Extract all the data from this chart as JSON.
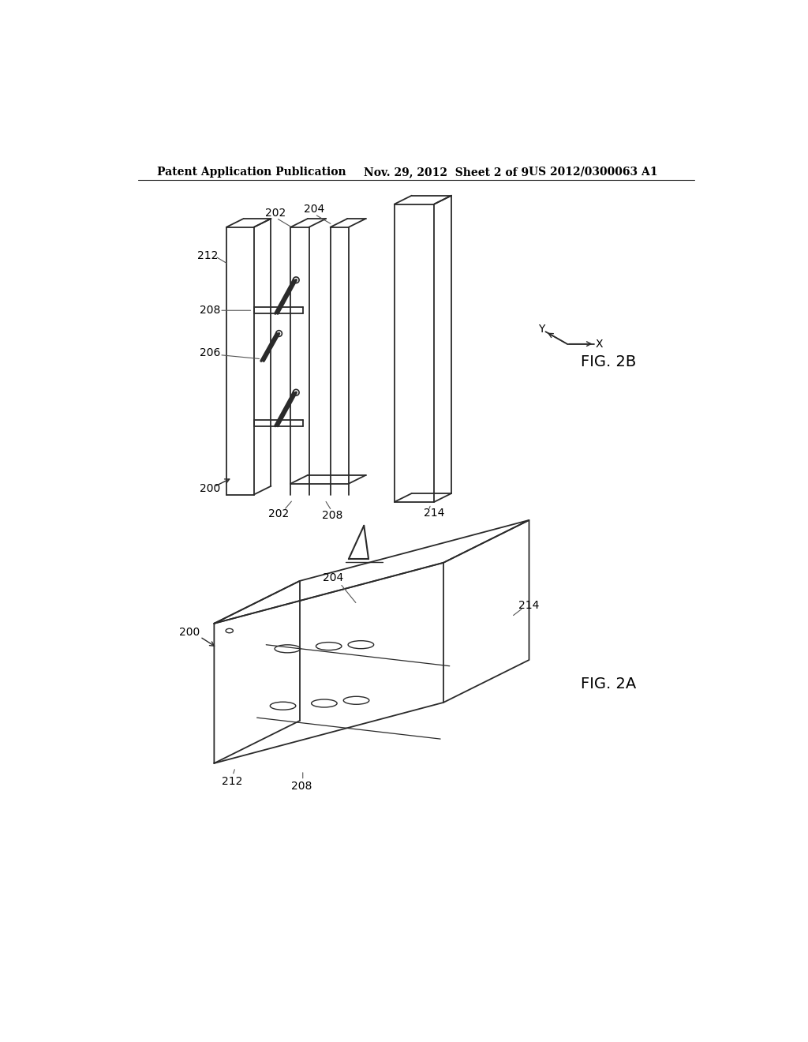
{
  "background_color": "#ffffff",
  "header_left": "Patent Application Publication",
  "header_center": "Nov. 29, 2012  Sheet 2 of 9",
  "header_right": "US 2012/0300063 A1",
  "fig2b_label": "FIG. 2B",
  "fig2a_label": "FIG. 2A",
  "line_color": "#2a2a2a",
  "text_color": "#000000",
  "leader_color": "#555555"
}
